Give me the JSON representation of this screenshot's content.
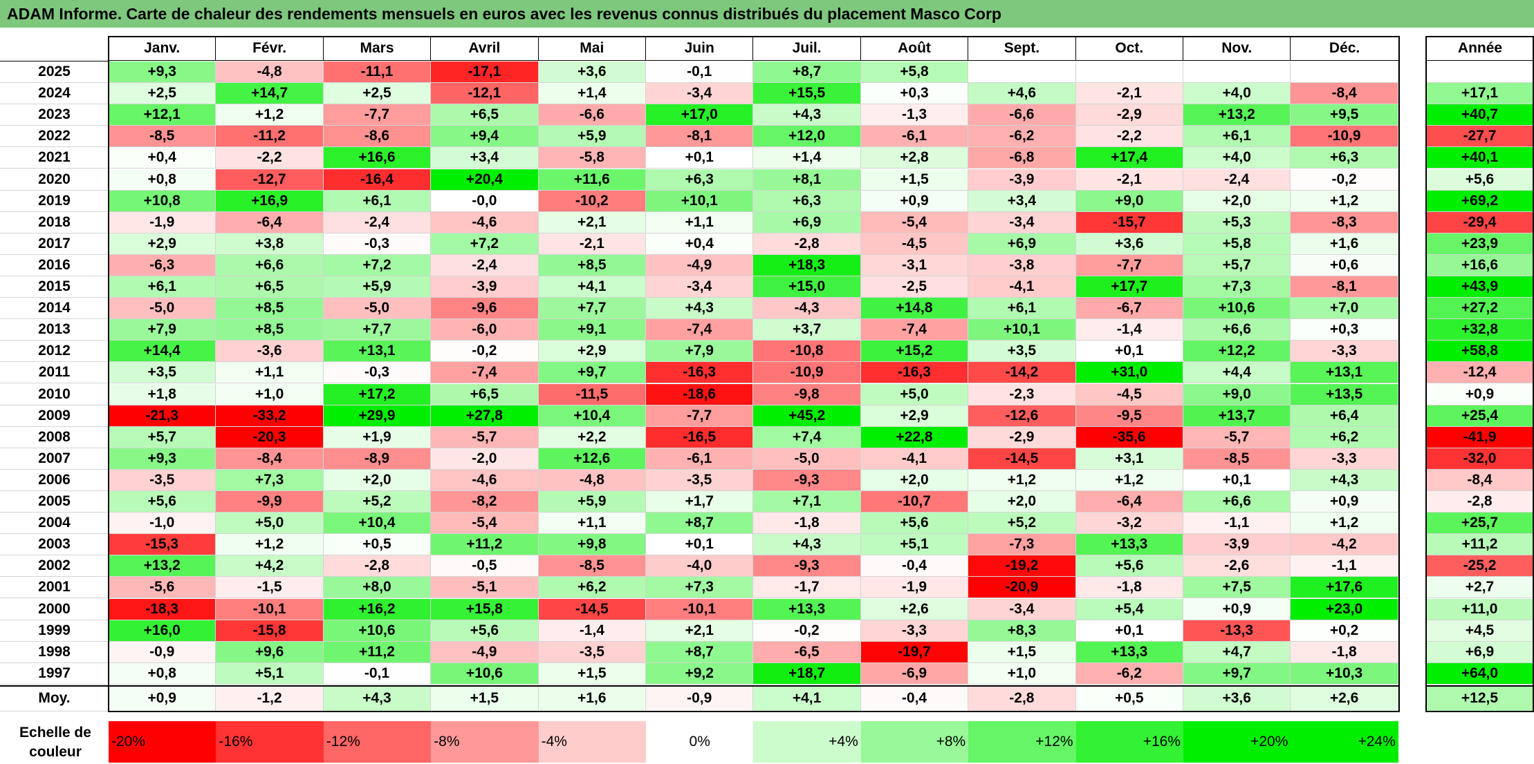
{
  "title": "ADAM Informe. Carte de chaleur des rendements mensuels en euros avec les revenus connus distribués du placement Masco Corp",
  "chart_data": {
    "type": "heatmap",
    "months": [
      "Janv.",
      "Févr.",
      "Mars",
      "Avril",
      "Mai",
      "Juin",
      "Juil.",
      "Août",
      "Sept.",
      "Oct.",
      "Nov.",
      "Déc."
    ],
    "annual_header": "Année",
    "rows": [
      {
        "year": "2025",
        "values": [
          "+9,3",
          "-4,8",
          "-11,1",
          "-17,1",
          "+3,6",
          "-0,1",
          "+8,7",
          "+5,8",
          "",
          "",
          "",
          ""
        ],
        "annual": ""
      },
      {
        "year": "2024",
        "values": [
          "+2,5",
          "+14,7",
          "+2,5",
          "-12,1",
          "+1,4",
          "-3,4",
          "+15,5",
          "+0,3",
          "+4,6",
          "-2,1",
          "+4,0",
          "-8,4"
        ],
        "annual": "+17,1"
      },
      {
        "year": "2023",
        "values": [
          "+12,1",
          "+1,2",
          "-7,7",
          "+6,5",
          "-6,6",
          "+17,0",
          "+4,3",
          "-1,3",
          "-6,6",
          "-2,9",
          "+13,2",
          "+9,5"
        ],
        "annual": "+40,7"
      },
      {
        "year": "2022",
        "values": [
          "-8,5",
          "-11,2",
          "-8,6",
          "+9,4",
          "+5,9",
          "-8,1",
          "+12,0",
          "-6,1",
          "-6,2",
          "-2,2",
          "+6,1",
          "-10,9"
        ],
        "annual": "-27,7"
      },
      {
        "year": "2021",
        "values": [
          "+0,4",
          "-2,2",
          "+16,6",
          "+3,4",
          "-5,8",
          "+0,1",
          "+1,4",
          "+2,8",
          "-6,8",
          "+17,4",
          "+4,0",
          "+6,3"
        ],
        "annual": "+40,1"
      },
      {
        "year": "2020",
        "values": [
          "+0,8",
          "-12,7",
          "-16,4",
          "+20,4",
          "+11,6",
          "+6,3",
          "+8,1",
          "+1,5",
          "-3,9",
          "-2,1",
          "-2,4",
          "-0,2"
        ],
        "annual": "+5,6"
      },
      {
        "year": "2019",
        "values": [
          "+10,8",
          "+16,9",
          "+6,1",
          "-0,0",
          "-10,2",
          "+10,1",
          "+6,3",
          "+0,9",
          "+3,4",
          "+9,0",
          "+2,0",
          "+1,2"
        ],
        "annual": "+69,2"
      },
      {
        "year": "2018",
        "values": [
          "-1,9",
          "-6,4",
          "-2,4",
          "-4,6",
          "+2,1",
          "+1,1",
          "+6,9",
          "-5,4",
          "-3,4",
          "-15,7",
          "+5,3",
          "-8,3"
        ],
        "annual": "-29,4"
      },
      {
        "year": "2017",
        "values": [
          "+2,9",
          "+3,8",
          "-0,3",
          "+7,2",
          "-2,1",
          "+0,4",
          "-2,8",
          "-4,5",
          "+6,9",
          "+3,6",
          "+5,8",
          "+1,6"
        ],
        "annual": "+23,9"
      },
      {
        "year": "2016",
        "values": [
          "-6,3",
          "+6,6",
          "+7,2",
          "-2,4",
          "+8,5",
          "-4,9",
          "+18,3",
          "-3,1",
          "-3,8",
          "-7,7",
          "+5,7",
          "+0,6"
        ],
        "annual": "+16,6"
      },
      {
        "year": "2015",
        "values": [
          "+6,1",
          "+6,5",
          "+5,9",
          "-3,9",
          "+4,1",
          "-3,4",
          "+15,0",
          "-2,5",
          "-4,1",
          "+17,7",
          "+7,3",
          "-8,1"
        ],
        "annual": "+43,9"
      },
      {
        "year": "2014",
        "values": [
          "-5,0",
          "+8,5",
          "-5,0",
          "-9,6",
          "+7,7",
          "+4,3",
          "-4,3",
          "+14,8",
          "+6,1",
          "-6,7",
          "+10,6",
          "+7,0"
        ],
        "annual": "+27,2"
      },
      {
        "year": "2013",
        "values": [
          "+7,9",
          "+8,5",
          "+7,7",
          "-6,0",
          "+9,1",
          "-7,4",
          "+3,7",
          "-7,4",
          "+10,1",
          "-1,4",
          "+6,6",
          "+0,3"
        ],
        "annual": "+32,8"
      },
      {
        "year": "2012",
        "values": [
          "+14,4",
          "-3,6",
          "+13,1",
          "-0,2",
          "+2,9",
          "+7,9",
          "-10,8",
          "+15,2",
          "+3,5",
          "+0,1",
          "+12,2",
          "-3,3"
        ],
        "annual": "+58,8"
      },
      {
        "year": "2011",
        "values": [
          "+3,5",
          "+1,1",
          "-0,3",
          "-7,4",
          "+9,7",
          "-16,3",
          "-10,9",
          "-16,3",
          "-14,2",
          "+31,0",
          "+4,4",
          "+13,1"
        ],
        "annual": "-12,4"
      },
      {
        "year": "2010",
        "values": [
          "+1,8",
          "+1,0",
          "+17,2",
          "+6,5",
          "-11,5",
          "-18,6",
          "-9,8",
          "+5,0",
          "-2,3",
          "-4,5",
          "+9,0",
          "+13,5"
        ],
        "annual": "+0,9"
      },
      {
        "year": "2009",
        "values": [
          "-21,3",
          "-33,2",
          "+29,9",
          "+27,8",
          "+10,4",
          "-7,7",
          "+45,2",
          "+2,9",
          "-12,6",
          "-9,5",
          "+13,7",
          "+6,4"
        ],
        "annual": "+25,4"
      },
      {
        "year": "2008",
        "values": [
          "+5,7",
          "-20,3",
          "+1,9",
          "-5,7",
          "+2,2",
          "-16,5",
          "+7,4",
          "+22,8",
          "-2,9",
          "-35,6",
          "-5,7",
          "+6,2"
        ],
        "annual": "-41,9"
      },
      {
        "year": "2007",
        "values": [
          "+9,3",
          "-8,4",
          "-8,9",
          "-2,0",
          "+12,6",
          "-6,1",
          "-5,0",
          "-4,1",
          "-14,5",
          "+3,1",
          "-8,5",
          "-3,3"
        ],
        "annual": "-32,0"
      },
      {
        "year": "2006",
        "values": [
          "-3,5",
          "+7,3",
          "+2,0",
          "-4,6",
          "-4,8",
          "-3,5",
          "-9,3",
          "+2,0",
          "+1,2",
          "+1,2",
          "+0,1",
          "+4,3"
        ],
        "annual": "-8,4"
      },
      {
        "year": "2005",
        "values": [
          "+5,6",
          "-9,9",
          "+5,2",
          "-8,2",
          "+5,9",
          "+1,7",
          "+7,1",
          "-10,7",
          "+2,0",
          "-6,4",
          "+6,6",
          "+0,9"
        ],
        "annual": "-2,8"
      },
      {
        "year": "2004",
        "values": [
          "-1,0",
          "+5,0",
          "+10,4",
          "-5,4",
          "+1,1",
          "+8,7",
          "-1,8",
          "+5,6",
          "+5,2",
          "-3,2",
          "-1,1",
          "+1,2"
        ],
        "annual": "+25,7"
      },
      {
        "year": "2003",
        "values": [
          "-15,3",
          "+1,2",
          "+0,5",
          "+11,2",
          "+9,8",
          "+0,1",
          "+4,3",
          "+5,1",
          "-7,3",
          "+13,3",
          "-3,9",
          "-4,2"
        ],
        "annual": "+11,2"
      },
      {
        "year": "2002",
        "values": [
          "+13,2",
          "+4,2",
          "-2,8",
          "-0,5",
          "-8,5",
          "-4,0",
          "-9,3",
          "-0,4",
          "-19,2",
          "+5,6",
          "-2,6",
          "-1,1"
        ],
        "annual": "-25,2"
      },
      {
        "year": "2001",
        "values": [
          "-5,6",
          "-1,5",
          "+8,0",
          "-5,1",
          "+6,2",
          "+7,3",
          "-1,7",
          "-1,9",
          "-20,9",
          "-1,8",
          "+7,5",
          "+17,6"
        ],
        "annual": "+2,7"
      },
      {
        "year": "2000",
        "values": [
          "-18,3",
          "-10,1",
          "+16,2",
          "+15,8",
          "-14,5",
          "-10,1",
          "+13,3",
          "+2,6",
          "-3,4",
          "+5,4",
          "+0,9",
          "+23,0"
        ],
        "annual": "+11,0"
      },
      {
        "year": "1999",
        "values": [
          "+16,0",
          "-15,8",
          "+10,6",
          "+5,6",
          "-1,4",
          "+2,1",
          "-0,2",
          "-3,3",
          "+8,3",
          "+0,1",
          "-13,3",
          "+0,2"
        ],
        "annual": "+4,5"
      },
      {
        "year": "1998",
        "values": [
          "-0,9",
          "+9,6",
          "+11,2",
          "-4,9",
          "-3,5",
          "+8,7",
          "-6,5",
          "-19,7",
          "+1,5",
          "+13,3",
          "+4,7",
          "-1,8"
        ],
        "annual": "+6,9"
      },
      {
        "year": "1997",
        "values": [
          "+0,8",
          "+5,1",
          "-0,1",
          "+10,6",
          "+1,5",
          "+9,2",
          "+18,7",
          "-6,9",
          "+1,0",
          "-6,2",
          "+9,7",
          "+10,3"
        ],
        "annual": "+64,0"
      }
    ],
    "average": {
      "label": "Moy.",
      "values": [
        "+0,9",
        "-1,2",
        "+4,3",
        "+1,5",
        "+1,6",
        "-0,9",
        "+4,1",
        "-0,4",
        "-2,8",
        "+0,5",
        "+3,6",
        "+2,6"
      ],
      "annual": "+12,5"
    },
    "scale": {
      "label_line1": "Echelle de",
      "label_line2": "couleur",
      "steps": [
        "-20%",
        "-16%",
        "-12%",
        "-8%",
        "-4%",
        "0%",
        "+4%",
        "+8%",
        "+12%",
        "+16%",
        "+20%",
        "+24%"
      ],
      "step_values": [
        -20,
        -16,
        -12,
        -8,
        -4,
        0,
        4,
        8,
        12,
        16,
        20,
        24
      ]
    },
    "colors": {
      "negative_max": "#ff0000",
      "neutral": "#ffffff",
      "positive_max": "#00ee00"
    }
  }
}
